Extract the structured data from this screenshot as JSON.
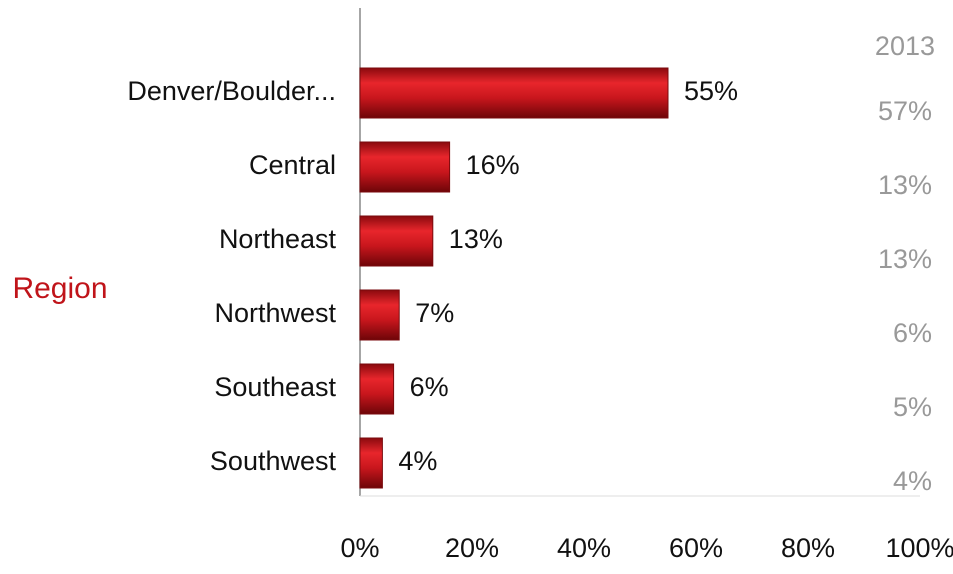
{
  "chart_data": {
    "type": "hbar",
    "axis_label": "Region",
    "categories": [
      "Denver/Boulder...",
      "Central",
      "Northeast",
      "Northwest",
      "Southeast",
      "Southwest"
    ],
    "values": [
      55,
      16,
      13,
      7,
      6,
      4
    ],
    "value_labels": [
      "55%",
      "16%",
      "13%",
      "7%",
      "6%",
      "4%"
    ],
    "color": "#c8161d",
    "xlim": [
      0,
      100
    ],
    "xticks": [
      {
        "value": 0,
        "label": "0%"
      },
      {
        "value": 20,
        "label": "20%"
      },
      {
        "value": 40,
        "label": "40%"
      },
      {
        "value": 60,
        "label": "60%"
      },
      {
        "value": 80,
        "label": "80%"
      },
      {
        "value": 100,
        "label": "100%"
      }
    ],
    "comparison": {
      "title": "2013",
      "values": [
        57,
        13,
        13,
        6,
        5,
        4
      ],
      "value_labels": [
        "57%",
        "13%",
        "13%",
        "6%",
        "5%",
        "4%"
      ],
      "color": "#999999"
    }
  }
}
